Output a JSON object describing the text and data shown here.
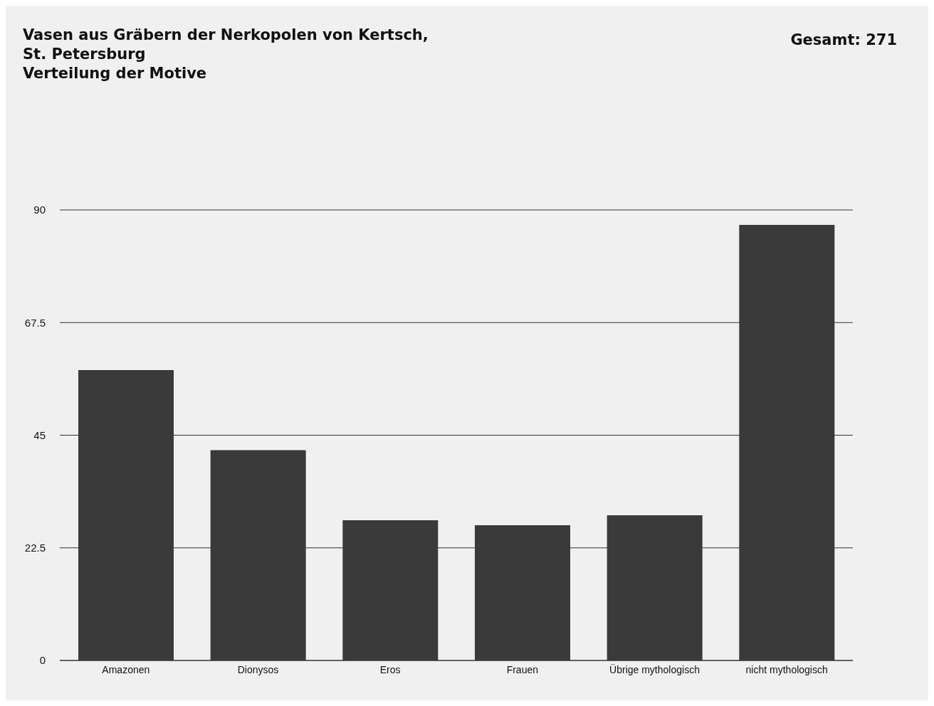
{
  "chart_data": {
    "type": "bar",
    "title": "Vasen aus Gräbern der Nerkopolen von Kertsch,\nSt. Petersburg\nVerteilung der Motive",
    "annotations": [
      "Gesamt: 271"
    ],
    "categories": [
      "Amazonen",
      "Dionysos",
      "Eros",
      "Frauen",
      "Übrige mythologisch",
      "nicht mythologisch"
    ],
    "values": [
      58,
      42,
      28,
      27,
      29,
      87
    ],
    "color": "#3a3a3a",
    "ylim": [
      0,
      90
    ],
    "yticks": [
      0,
      22.5,
      45,
      67.5,
      90
    ],
    "grid": "y"
  }
}
